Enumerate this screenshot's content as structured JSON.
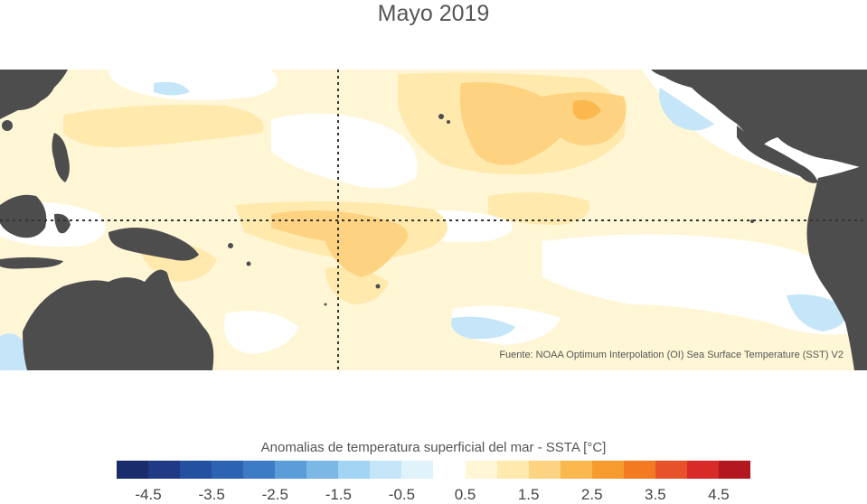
{
  "title": "Mayo 2019",
  "source": "Fuente: NOAA Optimum Interpolation (OI) Sea Surface Temperature (SST) V2",
  "legend": {
    "title": "Anomalias de temperatura superficial del mar - SSTA  [°C]",
    "unit": "°C",
    "bins": [
      {
        "from": -5.0,
        "to": -4.5,
        "color": "#1a2c6b"
      },
      {
        "from": -4.5,
        "to": -4.0,
        "color": "#203a86"
      },
      {
        "from": -4.0,
        "to": -3.5,
        "color": "#2450a0"
      },
      {
        "from": -3.5,
        "to": -3.0,
        "color": "#2c63b2"
      },
      {
        "from": -3.0,
        "to": -2.5,
        "color": "#3d7bc4"
      },
      {
        "from": -2.5,
        "to": -2.0,
        "color": "#5a9dd8"
      },
      {
        "from": -2.0,
        "to": -1.5,
        "color": "#7bb8e6"
      },
      {
        "from": -1.5,
        "to": -1.0,
        "color": "#a2d4f3"
      },
      {
        "from": -1.0,
        "to": -0.5,
        "color": "#c4e6f8"
      },
      {
        "from": -0.5,
        "to": 0.0,
        "color": "#e0f3fb"
      },
      {
        "from": 0.0,
        "to": 0.5,
        "color": "#ffffff"
      },
      {
        "from": 0.5,
        "to": 1.0,
        "color": "#fff6d6"
      },
      {
        "from": 1.0,
        "to": 1.5,
        "color": "#ffe9ad"
      },
      {
        "from": 1.5,
        "to": 2.0,
        "color": "#fdd382"
      },
      {
        "from": 2.0,
        "to": 2.5,
        "color": "#fbb84f"
      },
      {
        "from": 2.5,
        "to": 3.0,
        "color": "#f89b2e"
      },
      {
        "from": 3.0,
        "to": 3.5,
        "color": "#f47a22"
      },
      {
        "from": 3.5,
        "to": 4.0,
        "color": "#e8522a"
      },
      {
        "from": 4.0,
        "to": 4.5,
        "color": "#d82a28"
      },
      {
        "from": 4.5,
        "to": 5.0,
        "color": "#b3171f"
      }
    ],
    "tick_labels": [
      "-4.5",
      "-3.5",
      "-2.5",
      "-1.5",
      "-0.5",
      "0.5",
      "1.5",
      "2.5",
      "3.5",
      "4.5"
    ]
  },
  "map_colors": {
    "land": "#4d4d4d",
    "ocean_base": "#fff6d6",
    "guide_line": "#333333"
  }
}
